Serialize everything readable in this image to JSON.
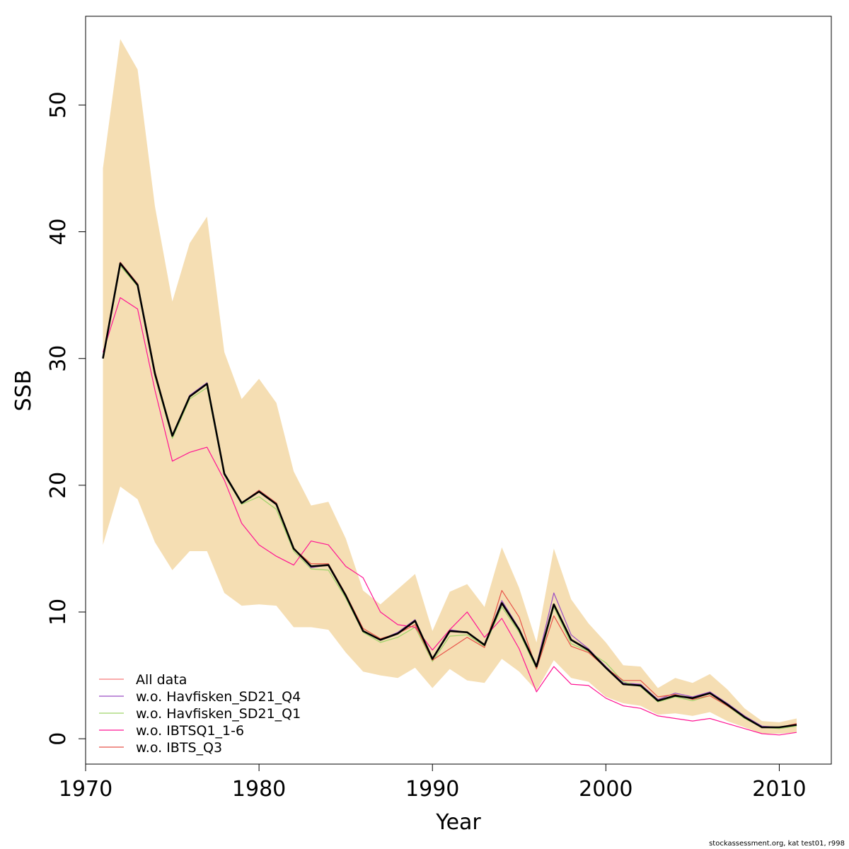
{
  "chart_data": {
    "type": "line",
    "title": "",
    "xlabel": "Year",
    "ylabel": "SSB",
    "xlim": [
      1970,
      2013
    ],
    "ylim": [
      -2,
      57
    ],
    "xticks": [
      1970,
      1980,
      1990,
      2000,
      2010
    ],
    "yticks": [
      0,
      10,
      20,
      30,
      40,
      50
    ],
    "grid": false,
    "legend_position": "bottom-left",
    "x": [
      1971,
      1972,
      1973,
      1974,
      1975,
      1976,
      1977,
      1978,
      1979,
      1980,
      1981,
      1982,
      1983,
      1984,
      1985,
      1986,
      1987,
      1988,
      1989,
      1990,
      1991,
      1992,
      1993,
      1994,
      1995,
      1996,
      1997,
      1998,
      1999,
      2000,
      2001,
      2002,
      2003,
      2004,
      2005,
      2006,
      2007,
      2008,
      2009,
      2010,
      2011
    ],
    "band": {
      "color": "#f5deb3",
      "upper": [
        45.0,
        55.2,
        52.8,
        42.0,
        34.5,
        39.1,
        41.2,
        30.5,
        26.8,
        28.4,
        26.5,
        21.1,
        18.4,
        18.7,
        15.8,
        11.7,
        10.6,
        11.8,
        13.0,
        8.5,
        11.6,
        12.2,
        10.4,
        15.1,
        11.9,
        7.6,
        15.0,
        11.0,
        9.1,
        7.6,
        5.8,
        5.7,
        4.0,
        4.8,
        4.4,
        5.1,
        3.9,
        2.4,
        1.4,
        1.3,
        1.6
      ],
      "lower": [
        15.3,
        19.9,
        18.9,
        15.5,
        13.3,
        14.8,
        14.8,
        11.5,
        10.5,
        10.6,
        10.5,
        8.8,
        8.8,
        8.6,
        6.8,
        5.3,
        5.0,
        4.8,
        5.6,
        4.0,
        5.5,
        4.6,
        4.4,
        6.3,
        5.3,
        3.8,
        6.2,
        4.8,
        4.5,
        3.3,
        2.8,
        2.6,
        1.9,
        2.0,
        1.8,
        2.1,
        1.4,
        0.9,
        0.4,
        0.4,
        0.5
      ]
    },
    "series": [
      {
        "name": "All data",
        "color": "#f77a7a",
        "width": 1.2,
        "values": [
          30.1,
          37.5,
          35.9,
          28.9,
          23.9,
          27.0,
          28.0,
          20.9,
          18.6,
          19.5,
          18.6,
          15.0,
          13.6,
          13.7,
          11.3,
          8.5,
          7.8,
          8.3,
          9.3,
          6.3,
          8.5,
          8.4,
          7.4,
          10.7,
          8.6,
          5.7,
          10.6,
          7.8,
          7.0,
          5.6,
          4.3,
          4.2,
          3.0,
          3.4,
          3.2,
          3.6,
          2.7,
          1.7,
          0.9,
          0.9,
          1.1
        ]
      },
      {
        "name": "w.o. Havfisken_SD21_Q4",
        "color": "#9a4dc4",
        "width": 1.2,
        "values": [
          30.0,
          37.6,
          35.9,
          28.8,
          23.9,
          27.1,
          28.1,
          21.0,
          18.6,
          19.6,
          18.6,
          15.0,
          13.5,
          13.7,
          11.3,
          8.5,
          7.8,
          8.4,
          9.4,
          6.3,
          8.6,
          8.4,
          7.4,
          10.9,
          8.7,
          5.8,
          11.5,
          8.2,
          7.1,
          5.7,
          4.4,
          4.3,
          3.1,
          3.6,
          3.3,
          3.7,
          2.8,
          1.8,
          1.0,
          0.9,
          1.1
        ]
      },
      {
        "name": "w.o. Havfisken_SD21_Q1",
        "color": "#9fd46a",
        "width": 1.2,
        "values": [
          30.0,
          37.3,
          35.7,
          28.6,
          23.7,
          26.8,
          27.7,
          20.8,
          18.5,
          19.1,
          18.1,
          14.8,
          13.4,
          13.3,
          11.1,
          8.4,
          7.6,
          8.0,
          8.8,
          6.1,
          8.1,
          8.2,
          7.3,
          10.4,
          8.4,
          5.5,
          10.4,
          7.5,
          6.9,
          6.0,
          4.5,
          4.1,
          2.9,
          3.3,
          3.0,
          3.4,
          2.6,
          1.6,
          0.9,
          0.8,
          1.0
        ]
      },
      {
        "name": "w.o. IBTSQ1_1-6",
        "color": "#ff1493",
        "width": 1.2,
        "values": [
          30.5,
          34.8,
          33.9,
          27.5,
          21.9,
          22.6,
          23.0,
          20.4,
          17.0,
          15.3,
          14.4,
          13.7,
          15.6,
          15.3,
          13.6,
          12.7,
          10.0,
          9.0,
          8.8,
          7.0,
          8.6,
          10.0,
          8.0,
          9.5,
          7.1,
          3.7,
          5.7,
          4.3,
          4.2,
          3.2,
          2.6,
          2.4,
          1.8,
          1.6,
          1.4,
          1.6,
          1.2,
          0.8,
          0.4,
          0.3,
          0.5
        ]
      },
      {
        "name": "w.o. IBTS_Q3",
        "color": "#e8544a",
        "width": 1.2,
        "values": [
          30.2,
          37.6,
          35.9,
          29.0,
          23.9,
          27.0,
          28.0,
          20.9,
          18.6,
          19.6,
          18.6,
          15.0,
          13.8,
          13.8,
          11.4,
          8.7,
          7.9,
          8.3,
          9.0,
          6.2,
          7.1,
          8.0,
          7.2,
          11.7,
          9.6,
          5.5,
          9.7,
          7.3,
          6.8,
          5.6,
          4.6,
          4.6,
          3.3,
          3.5,
          3.1,
          3.4,
          2.6,
          1.7,
          0.9,
          0.9,
          1.2
        ]
      },
      {
        "name": "",
        "color": "#000000",
        "width": 2.6,
        "values": [
          30.0,
          37.5,
          35.8,
          28.8,
          23.9,
          27.0,
          28.0,
          20.9,
          18.6,
          19.5,
          18.5,
          15.0,
          13.6,
          13.7,
          11.3,
          8.5,
          7.8,
          8.3,
          9.3,
          6.3,
          8.5,
          8.4,
          7.4,
          10.7,
          8.6,
          5.7,
          10.6,
          7.8,
          7.0,
          5.6,
          4.3,
          4.2,
          3.0,
          3.4,
          3.2,
          3.6,
          2.7,
          1.7,
          0.9,
          0.9,
          1.1
        ]
      }
    ],
    "legend": [
      "All data",
      "w.o. Havfisken_SD21_Q4",
      "w.o. Havfisken_SD21_Q1",
      "w.o. IBTSQ1_1-6",
      "w.o. IBTS_Q3"
    ]
  },
  "footer": "stockassessment.org, kat  test01, r998"
}
